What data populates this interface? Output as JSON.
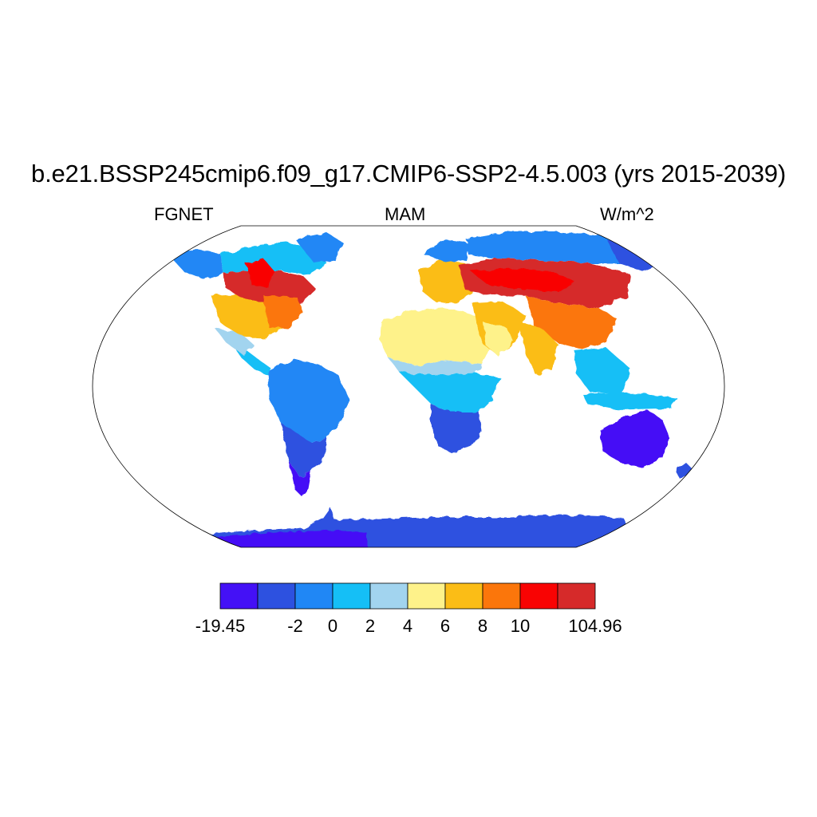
{
  "title": "b.e21.BSSP245cmip6.f09_g17.CMIP6-SSP2-4.5.003 (yrs 2015-2039)",
  "subtitle_left": "FGNET",
  "subtitle_center": "MAM",
  "subtitle_right": "W/m^2",
  "colorbar": {
    "colors": [
      "#4411f6",
      "#2d51e0",
      "#2087f5",
      "#15bff6",
      "#a2d4ef",
      "#fef28a",
      "#fbbd16",
      "#fb760b",
      "#f90303",
      "#d62a2a"
    ],
    "labels": [
      "-19.45",
      "-2",
      "0",
      "2",
      "4",
      "6",
      "8",
      "10",
      "104.96"
    ],
    "label_positions": [
      0,
      2,
      3,
      4,
      5,
      6,
      7,
      8,
      10
    ]
  },
  "chart_data": {
    "type": "heatmap",
    "title": "b.e21.BSSP245cmip6.f09_g17.CMIP6-SSP2-4.5.003 (yrs 2015-2039)",
    "variable": "FGNET",
    "season": "MAM",
    "units": "W/m^2",
    "levels": [
      -19.45,
      -2,
      0,
      2,
      4,
      6,
      8,
      10,
      104.96
    ],
    "regions": [
      {
        "name": "Antarctica",
        "value_bin": 1
      },
      {
        "name": "Australia",
        "value_bin": 0
      },
      {
        "name": "South America south",
        "value_bin": 0
      },
      {
        "name": "South America north",
        "value_bin": 2
      },
      {
        "name": "Central America",
        "value_bin": 3
      },
      {
        "name": "Southern Africa",
        "value_bin": 1
      },
      {
        "name": "Central Africa",
        "value_bin": 3
      },
      {
        "name": "Sahara",
        "value_bin": 5
      },
      {
        "name": "Arabia",
        "value_bin": 6
      },
      {
        "name": "India",
        "value_bin": 6
      },
      {
        "name": "China",
        "value_bin": 7
      },
      {
        "name": "Southeast Asia",
        "value_bin": 3
      },
      {
        "name": "Europe",
        "value_bin": 7
      },
      {
        "name": "Central Asia",
        "value_bin": 9
      },
      {
        "name": "Siberia north",
        "value_bin": 2
      },
      {
        "name": "Eastern Siberia",
        "value_bin": 1
      },
      {
        "name": "Alaska",
        "value_bin": 2
      },
      {
        "name": "Canada",
        "value_bin": 9
      },
      {
        "name": "United States",
        "value_bin": 7
      },
      {
        "name": "Greenland",
        "value_bin": 3
      }
    ]
  }
}
